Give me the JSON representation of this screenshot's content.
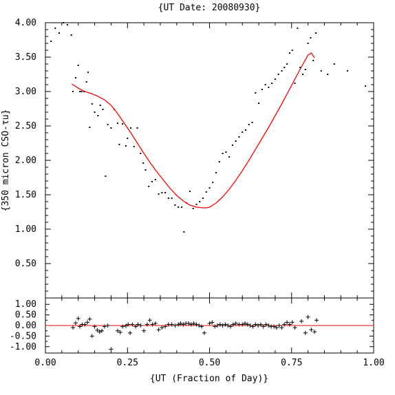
{
  "chart_data": [
    {
      "type": "scatter",
      "title": "{UT Date: 20080930}",
      "ylabel": "{350 micron CSO-τu}",
      "xlim": [
        0.0,
        1.0
      ],
      "ylim": [
        0.0,
        4.0
      ],
      "yticks": [
        "0.50",
        "1.00",
        "1.50",
        "2.00",
        "2.50",
        "3.00",
        "3.50",
        "4.00"
      ],
      "yticks_values": [
        0.5,
        1.0,
        1.5,
        2.0,
        2.5,
        3.0,
        3.5,
        4.0
      ],
      "grid": false,
      "colors": {
        "points": "#000000",
        "fit": "#ff0000"
      },
      "series": [
        {
          "kind": "points",
          "x": [
            0.017,
            0.03,
            0.042,
            0.055,
            0.067,
            0.079,
            0.084,
            0.092,
            0.1,
            0.105,
            0.11,
            0.117,
            0.125,
            0.13,
            0.135,
            0.142,
            0.15,
            0.16,
            0.167,
            0.175,
            0.183,
            0.19,
            0.2,
            0.21,
            0.22,
            0.225,
            0.235,
            0.245,
            0.25,
            0.26,
            0.27,
            0.28,
            0.29,
            0.298,
            0.305,
            0.315,
            0.325,
            0.335,
            0.345,
            0.355,
            0.365,
            0.375,
            0.385,
            0.395,
            0.405,
            0.415,
            0.422,
            0.43,
            0.44,
            0.45,
            0.46,
            0.47,
            0.48,
            0.49,
            0.5,
            0.51,
            0.52,
            0.53,
            0.54,
            0.55,
            0.56,
            0.57,
            0.58,
            0.59,
            0.6,
            0.61,
            0.62,
            0.63,
            0.64,
            0.65,
            0.66,
            0.67,
            0.68,
            0.69,
            0.7,
            0.71,
            0.72,
            0.728,
            0.736,
            0.744,
            0.752,
            0.76,
            0.768,
            0.776,
            0.784,
            0.792,
            0.8,
            0.808,
            0.816,
            0.824,
            0.84,
            0.86,
            0.88,
            0.92,
            0.975
          ],
          "y": [
            3.73,
            3.92,
            3.85,
            4.0,
            3.97,
            3.82,
            3.0,
            3.2,
            3.38,
            3.0,
            3.0,
            3.0,
            3.14,
            3.28,
            2.48,
            2.82,
            2.7,
            2.65,
            2.8,
            2.74,
            1.77,
            2.52,
            2.47,
            2.74,
            2.54,
            2.23,
            2.53,
            2.21,
            2.32,
            2.47,
            2.2,
            2.47,
            2.1,
            1.96,
            1.86,
            1.62,
            1.69,
            1.72,
            1.51,
            1.53,
            1.53,
            1.45,
            1.45,
            1.35,
            1.32,
            1.32,
            0.96,
            1.38,
            1.55,
            1.3,
            1.36,
            1.4,
            1.45,
            1.54,
            1.6,
            1.68,
            1.82,
            1.98,
            2.1,
            2.12,
            2.05,
            2.22,
            2.28,
            2.34,
            2.41,
            2.44,
            2.52,
            2.55,
            2.98,
            2.83,
            3.03,
            3.1,
            3.06,
            3.12,
            3.18,
            3.25,
            3.3,
            3.35,
            3.4,
            3.56,
            3.6,
            3.12,
            3.92,
            3.35,
            3.25,
            3.32,
            3.7,
            3.78,
            3.45,
            3.85,
            3.3,
            3.25,
            3.4,
            3.3,
            3.08
          ]
        },
        {
          "kind": "fit",
          "x": [
            0.08,
            0.1,
            0.12,
            0.14,
            0.16,
            0.18,
            0.2,
            0.22,
            0.24,
            0.26,
            0.28,
            0.3,
            0.32,
            0.34,
            0.36,
            0.38,
            0.4,
            0.42,
            0.44,
            0.46,
            0.48,
            0.49,
            0.5,
            0.52,
            0.54,
            0.56,
            0.58,
            0.6,
            0.62,
            0.64,
            0.66,
            0.68,
            0.7,
            0.72,
            0.74,
            0.76,
            0.78,
            0.8,
            0.81,
            0.82
          ],
          "y": [
            3.11,
            3.05,
            3.0,
            2.97,
            2.93,
            2.88,
            2.8,
            2.68,
            2.54,
            2.4,
            2.25,
            2.1,
            1.96,
            1.83,
            1.71,
            1.59,
            1.49,
            1.41,
            1.35,
            1.32,
            1.31,
            1.31,
            1.32,
            1.38,
            1.47,
            1.58,
            1.71,
            1.85,
            2.0,
            2.16,
            2.32,
            2.48,
            2.65,
            2.82,
            3.0,
            3.18,
            3.36,
            3.53,
            3.56,
            3.49
          ]
        }
      ]
    },
    {
      "type": "scatter",
      "xlabel": "{UT (Fraction of Day)}",
      "xlim": [
        0.0,
        1.0
      ],
      "ylim": [
        -1.3,
        1.3
      ],
      "xticks": [
        "0.00",
        "0.25",
        "0.50",
        "0.75",
        "1.00"
      ],
      "xticks_values": [
        0.0,
        0.25,
        0.5,
        0.75,
        1.0
      ],
      "yticks": [
        "-1.00",
        "-0.50",
        "0.00",
        "0.50",
        "1.00"
      ],
      "yticks_values": [
        -1.0,
        -0.5,
        0.0,
        0.5,
        1.0
      ],
      "grid": false,
      "colors": {
        "points": "#000000",
        "zero_line": "#ff0000"
      },
      "series": [
        {
          "kind": "residuals",
          "x": [
            0.084,
            0.092,
            0.1,
            0.105,
            0.112,
            0.12,
            0.128,
            0.135,
            0.142,
            0.15,
            0.158,
            0.165,
            0.172,
            0.18,
            0.19,
            0.2,
            0.22,
            0.228,
            0.235,
            0.245,
            0.252,
            0.258,
            0.265,
            0.275,
            0.282,
            0.29,
            0.3,
            0.31,
            0.318,
            0.326,
            0.335,
            0.345,
            0.355,
            0.365,
            0.375,
            0.385,
            0.395,
            0.405,
            0.412,
            0.42,
            0.428,
            0.436,
            0.444,
            0.452,
            0.46,
            0.468,
            0.476,
            0.484,
            0.5,
            0.508,
            0.516,
            0.524,
            0.532,
            0.54,
            0.548,
            0.556,
            0.564,
            0.572,
            0.58,
            0.59,
            0.6,
            0.608,
            0.616,
            0.624,
            0.632,
            0.64,
            0.648,
            0.656,
            0.664,
            0.672,
            0.68,
            0.688,
            0.696,
            0.704,
            0.712,
            0.72,
            0.728,
            0.736,
            0.744,
            0.752,
            0.76,
            0.78,
            0.792,
            0.8,
            0.81,
            0.82,
            0.826
          ],
          "y": [
            -0.1,
            0.12,
            0.33,
            -0.05,
            0.05,
            0.05,
            0.15,
            0.3,
            -0.5,
            -0.05,
            -0.22,
            -0.3,
            -0.25,
            -0.05,
            0.0,
            -1.12,
            -0.25,
            -0.32,
            -0.05,
            -0.02,
            0.05,
            -0.35,
            0.05,
            -0.05,
            0.05,
            0.0,
            -0.25,
            0.05,
            0.25,
            0.05,
            0.1,
            -0.2,
            -0.1,
            -0.05,
            0.05,
            0.05,
            0.0,
            0.05,
            0.1,
            0.05,
            0.1,
            0.1,
            0.05,
            0.1,
            0.05,
            0.0,
            -0.05,
            -0.35,
            0.1,
            0.15,
            -0.05,
            0.0,
            0.05,
            0.0,
            0.05,
            0.0,
            -0.05,
            0.05,
            0.1,
            0.05,
            0.05,
            0.1,
            0.05,
            0.0,
            -0.05,
            0.05,
            0.0,
            0.05,
            -0.05,
            0.05,
            0.0,
            -0.05,
            -0.05,
            -0.1,
            0.0,
            -0.1,
            0.05,
            0.15,
            0.05,
            0.15,
            -0.1,
            0.2,
            -0.35,
            0.4,
            -0.2,
            -0.3,
            0.25
          ]
        }
      ]
    }
  ]
}
